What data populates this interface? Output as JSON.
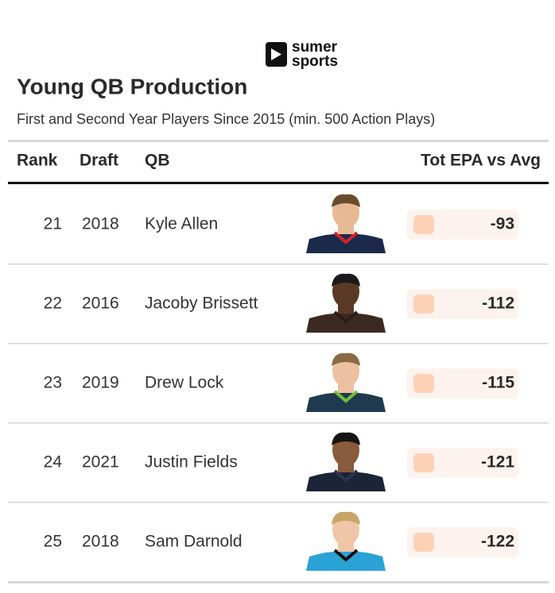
{
  "logo": {
    "line1": "sumer",
    "line2": "sports"
  },
  "title": "Young QB Production",
  "subtitle": "First and Second Year Players Since 2015 (min. 500 Action Plays)",
  "columns": [
    "Rank",
    "Draft",
    "QB",
    "Tot EPA vs Avg"
  ],
  "rows": [
    {
      "rank": 21,
      "draft": 2018,
      "qb": "Kyle Allen",
      "epa": -93
    },
    {
      "rank": 22,
      "draft": 2016,
      "qb": "Jacoby Brissett",
      "epa": -112
    },
    {
      "rank": 23,
      "draft": 2019,
      "qb": "Drew Lock",
      "epa": -115
    },
    {
      "rank": 24,
      "draft": 2021,
      "qb": "Justin Fields",
      "epa": -121
    },
    {
      "rank": 25,
      "draft": 2018,
      "qb": "Sam Darnold",
      "epa": -122
    }
  ]
}
